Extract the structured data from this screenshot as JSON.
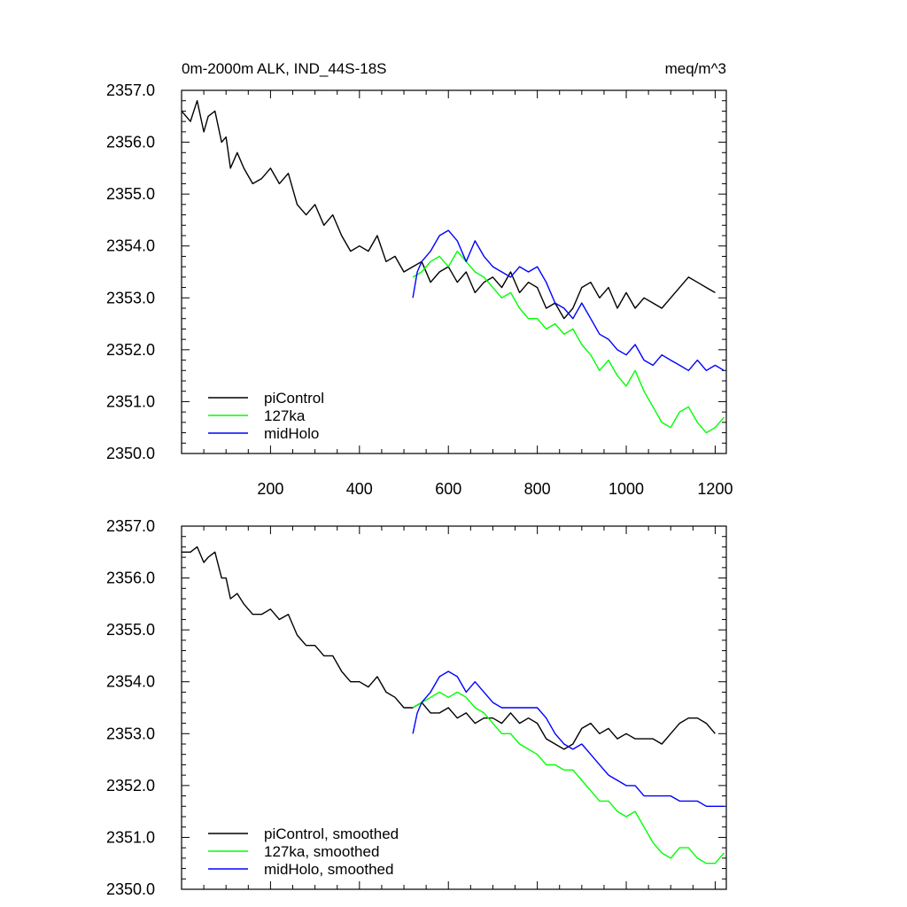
{
  "chart_data": [
    {
      "type": "line",
      "title": "0m-2000m ALK, IND_44S-18S",
      "units": "meq/m^3",
      "xlim": [
        0,
        1225
      ],
      "ylim": [
        2350.0,
        2357.0
      ],
      "xticks": [
        200,
        400,
        600,
        800,
        1000,
        1200
      ],
      "xtick_labels": [
        "200",
        "400",
        "600",
        "800",
        "1000",
        "1200"
      ],
      "yticks": [
        2350.0,
        2351.0,
        2352.0,
        2353.0,
        2354.0,
        2355.0,
        2356.0,
        2357.0
      ],
      "ytick_labels": [
        "2350.0",
        "2351.0",
        "2352.0",
        "2353.0",
        "2354.0",
        "2355.0",
        "2356.0",
        "2357.0"
      ],
      "legend_position": "bottom-left",
      "series": [
        {
          "name": "piControl",
          "color": "#000000",
          "x": [
            0,
            20,
            35,
            50,
            60,
            75,
            90,
            100,
            110,
            125,
            140,
            160,
            180,
            200,
            220,
            240,
            260,
            280,
            300,
            320,
            340,
            360,
            380,
            400,
            420,
            440,
            460,
            480,
            500,
            520,
            540,
            560,
            580,
            600,
            620,
            640,
            660,
            680,
            700,
            720,
            740,
            760,
            780,
            800,
            820,
            840,
            860,
            880,
            900,
            920,
            940,
            960,
            980,
            1000,
            1020,
            1040,
            1060,
            1080,
            1100,
            1120,
            1140,
            1160,
            1180,
            1200
          ],
          "y": [
            2356.6,
            2356.4,
            2356.8,
            2356.2,
            2356.5,
            2356.6,
            2356.0,
            2356.1,
            2355.5,
            2355.8,
            2355.5,
            2355.2,
            2355.3,
            2355.5,
            2355.2,
            2355.4,
            2354.8,
            2354.6,
            2354.8,
            2354.4,
            2354.6,
            2354.2,
            2353.9,
            2354.0,
            2353.9,
            2354.2,
            2353.7,
            2353.8,
            2353.5,
            2353.6,
            2353.7,
            2353.3,
            2353.5,
            2353.6,
            2353.3,
            2353.5,
            2353.1,
            2353.3,
            2353.4,
            2353.2,
            2353.5,
            2353.1,
            2353.3,
            2353.2,
            2352.8,
            2352.9,
            2352.6,
            2352.8,
            2353.2,
            2353.3,
            2353.0,
            2353.2,
            2352.8,
            2353.1,
            2352.8,
            2353.0,
            2352.9,
            2352.8,
            2353.0,
            2353.2,
            2353.4,
            2353.3,
            2353.2,
            2353.1
          ]
        },
        {
          "name": "127ka",
          "color": "#00ff00",
          "x": [
            520,
            540,
            560,
            580,
            600,
            620,
            640,
            660,
            680,
            700,
            720,
            740,
            760,
            780,
            800,
            820,
            840,
            860,
            880,
            900,
            920,
            940,
            960,
            980,
            1000,
            1020,
            1040,
            1060,
            1080,
            1100,
            1120,
            1140,
            1160,
            1180,
            1200,
            1220
          ],
          "y": [
            2353.4,
            2353.5,
            2353.7,
            2353.8,
            2353.6,
            2353.9,
            2353.7,
            2353.5,
            2353.4,
            2353.2,
            2353.0,
            2353.1,
            2352.8,
            2352.6,
            2352.6,
            2352.4,
            2352.5,
            2352.3,
            2352.4,
            2352.1,
            2351.9,
            2351.6,
            2351.8,
            2351.5,
            2351.3,
            2351.6,
            2351.2,
            2350.9,
            2350.6,
            2350.5,
            2350.8,
            2350.9,
            2350.6,
            2350.4,
            2350.5,
            2350.7
          ]
        },
        {
          "name": "midHolo",
          "color": "#0000ff",
          "x": [
            520,
            530,
            540,
            560,
            580,
            600,
            620,
            640,
            660,
            680,
            700,
            720,
            740,
            760,
            780,
            800,
            820,
            840,
            860,
            880,
            900,
            920,
            940,
            960,
            980,
            1000,
            1020,
            1040,
            1060,
            1080,
            1100,
            1120,
            1140,
            1160,
            1180,
            1200,
            1220
          ],
          "y": [
            2353.0,
            2353.5,
            2353.7,
            2353.9,
            2354.2,
            2354.3,
            2354.1,
            2353.7,
            2354.1,
            2353.8,
            2353.6,
            2353.5,
            2353.4,
            2353.6,
            2353.5,
            2353.6,
            2353.3,
            2352.9,
            2352.8,
            2352.6,
            2352.9,
            2352.6,
            2352.3,
            2352.2,
            2352.0,
            2351.9,
            2352.1,
            2351.8,
            2351.7,
            2351.9,
            2351.8,
            2351.7,
            2351.6,
            2351.8,
            2351.6,
            2351.7,
            2351.6
          ]
        }
      ]
    },
    {
      "type": "line",
      "title": "",
      "xlim": [
        0,
        1225
      ],
      "ylim": [
        2350.0,
        2357.0
      ],
      "xticks": [
        200,
        400,
        600,
        800,
        1000,
        1200
      ],
      "xtick_labels": [],
      "yticks": [
        2350.0,
        2351.0,
        2352.0,
        2353.0,
        2354.0,
        2355.0,
        2356.0,
        2357.0
      ],
      "ytick_labels": [
        "2350.0",
        "2351.0",
        "2352.0",
        "2353.0",
        "2354.0",
        "2355.0",
        "2356.0",
        "2357.0"
      ],
      "legend_position": "bottom-left",
      "series": [
        {
          "name": "piControl, smoothed",
          "color": "#000000",
          "x": [
            0,
            20,
            35,
            50,
            60,
            75,
            90,
            100,
            110,
            125,
            140,
            160,
            180,
            200,
            220,
            240,
            260,
            280,
            300,
            320,
            340,
            360,
            380,
            400,
            420,
            440,
            460,
            480,
            500,
            520,
            540,
            560,
            580,
            600,
            620,
            640,
            660,
            680,
            700,
            720,
            740,
            760,
            780,
            800,
            820,
            840,
            860,
            880,
            900,
            920,
            940,
            960,
            980,
            1000,
            1020,
            1040,
            1060,
            1080,
            1100,
            1120,
            1140,
            1160,
            1180,
            1200
          ],
          "y": [
            2356.5,
            2356.5,
            2356.6,
            2356.3,
            2356.4,
            2356.5,
            2356.0,
            2356.0,
            2355.6,
            2355.7,
            2355.5,
            2355.3,
            2355.3,
            2355.4,
            2355.2,
            2355.3,
            2354.9,
            2354.7,
            2354.7,
            2354.5,
            2354.5,
            2354.2,
            2354.0,
            2354.0,
            2353.9,
            2354.1,
            2353.8,
            2353.7,
            2353.5,
            2353.5,
            2353.6,
            2353.4,
            2353.4,
            2353.5,
            2353.3,
            2353.4,
            2353.2,
            2353.3,
            2353.3,
            2353.2,
            2353.4,
            2353.2,
            2353.3,
            2353.2,
            2352.9,
            2352.8,
            2352.7,
            2352.8,
            2353.1,
            2353.2,
            2353.0,
            2353.1,
            2352.9,
            2353.0,
            2352.9,
            2352.9,
            2352.9,
            2352.8,
            2353.0,
            2353.2,
            2353.3,
            2353.3,
            2353.2,
            2353.0
          ]
        },
        {
          "name": "127ka, smoothed",
          "color": "#00ff00",
          "x": [
            520,
            540,
            560,
            580,
            600,
            620,
            640,
            660,
            680,
            700,
            720,
            740,
            760,
            780,
            800,
            820,
            840,
            860,
            880,
            900,
            920,
            940,
            960,
            980,
            1000,
            1020,
            1040,
            1060,
            1080,
            1100,
            1120,
            1140,
            1160,
            1180,
            1200,
            1220
          ],
          "y": [
            2353.5,
            2353.6,
            2353.7,
            2353.8,
            2353.7,
            2353.8,
            2353.7,
            2353.5,
            2353.4,
            2353.2,
            2353.0,
            2353.0,
            2352.8,
            2352.7,
            2352.6,
            2352.4,
            2352.4,
            2352.3,
            2352.3,
            2352.1,
            2351.9,
            2351.7,
            2351.7,
            2351.5,
            2351.4,
            2351.5,
            2351.2,
            2350.9,
            2350.7,
            2350.6,
            2350.8,
            2350.8,
            2350.6,
            2350.5,
            2350.5,
            2350.7
          ]
        },
        {
          "name": "midHolo, smoothed",
          "color": "#0000ff",
          "x": [
            520,
            530,
            540,
            560,
            580,
            600,
            620,
            640,
            660,
            680,
            700,
            720,
            740,
            760,
            780,
            800,
            820,
            840,
            860,
            880,
            900,
            920,
            940,
            960,
            980,
            1000,
            1020,
            1040,
            1060,
            1080,
            1100,
            1120,
            1140,
            1160,
            1180,
            1200,
            1220
          ],
          "y": [
            2353.0,
            2353.4,
            2353.6,
            2353.8,
            2354.1,
            2354.2,
            2354.1,
            2353.8,
            2354.0,
            2353.8,
            2353.6,
            2353.5,
            2353.5,
            2353.5,
            2353.5,
            2353.5,
            2353.3,
            2353.0,
            2352.8,
            2352.7,
            2352.8,
            2352.6,
            2352.4,
            2352.2,
            2352.1,
            2352.0,
            2352.0,
            2351.8,
            2351.8,
            2351.8,
            2351.8,
            2351.7,
            2351.7,
            2351.7,
            2351.6,
            2351.6,
            2351.6
          ]
        }
      ]
    }
  ]
}
